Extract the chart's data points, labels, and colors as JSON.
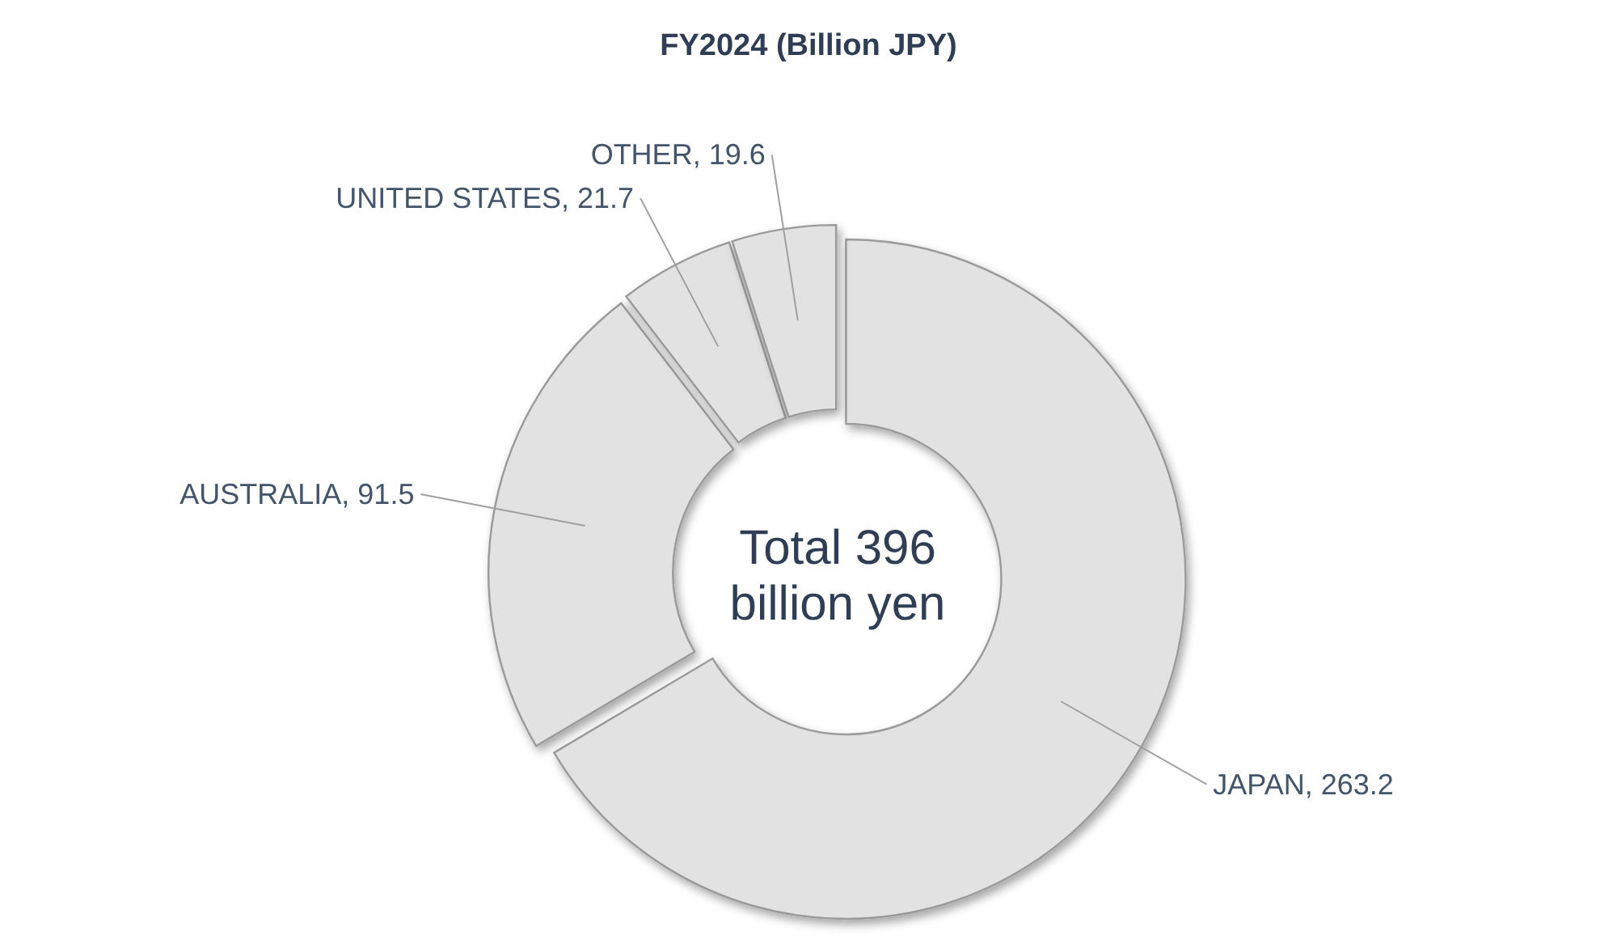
{
  "chart_data": {
    "type": "donut",
    "title": "FY2024 (Billion JPY)",
    "categories": [
      "JAPAN",
      "AUSTRALIA",
      "UNITED STATES",
      "OTHER"
    ],
    "values": [
      263.2,
      91.5,
      21.7,
      19.6
    ],
    "colors": [
      "#e2e2e2",
      "#e2e2e2",
      "#e2e2e2",
      "#e2e2e2"
    ],
    "value_labels": [
      ", 263.2",
      ", 91.5",
      ", 21.7",
      ", 19.6"
    ],
    "annotations": [
      "Total 396 billion yen"
    ]
  }
}
